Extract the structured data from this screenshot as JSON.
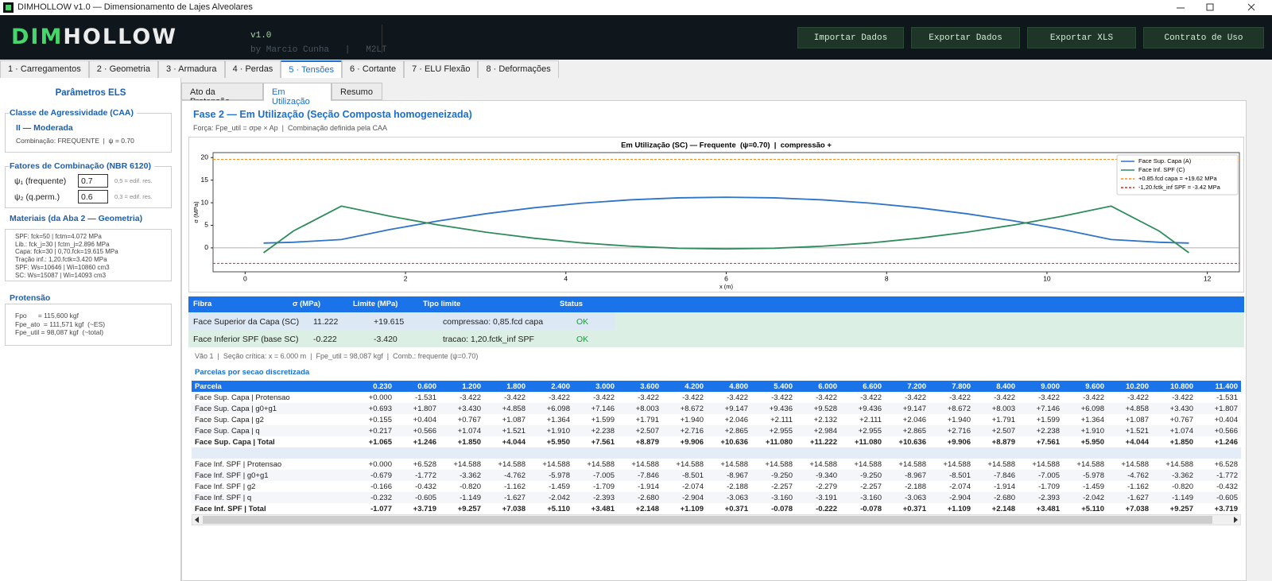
{
  "window": {
    "title": "DIMHOLLOW v1.0 — Dimensionamento de Lajes Alveolares"
  },
  "header": {
    "logo_a": "DIM",
    "logo_b": "HOLLOW",
    "version": "v1.0",
    "author": "by Marcio Cunha   |   M2LT",
    "buttons": [
      "Importar Dados",
      "Exportar Dados",
      "Exportar XLS",
      "Contrato de Uso"
    ]
  },
  "tabs": {
    "items": [
      "1 · Carregamentos",
      "2 · Geometria",
      "3 · Armadura",
      "4 · Perdas",
      "5 · Tensões",
      "6 · Cortante",
      "7 · ELU Flexão",
      "8 · Deformações"
    ],
    "active": 4
  },
  "sidebar": {
    "title": "Parâmetros ELS",
    "caa": {
      "title": "Classe de Agressividade (CAA)",
      "class": "II — Moderada",
      "combination": "Combinação: FREQUENTE  |  ψ = 0.70"
    },
    "factors": {
      "title": "Fatores de Combinação (NBR 6120)",
      "rows": [
        {
          "label": "ψ₁ (frequente)",
          "value": "0.7",
          "hint": "0,5 = edif. res."
        },
        {
          "label": "ψ₂ (q.perm.)",
          "value": "0.6",
          "hint": "0,3 = edif. res."
        }
      ]
    },
    "materials": {
      "title": "Materiais (da Aba 2 — Geometria)",
      "lines": [
        "SPF: fck=50 | fctm=4.072 MPa",
        "Lib.: fck_j=30 | fctm_j=2.896 MPa",
        "Capa: fck=30 | 0,70.fck=19.615 MPa",
        "Tração inf.: 1,20.fctk=3.420 MPa",
        "SPF: Ws=10646 | Wi=10860 cm3",
        "SC: Ws=15087 | Wi=14093 cm3"
      ]
    },
    "prestress": {
      "title": "Protensão",
      "lines": [
        "Fpo      = 115,600 kgf",
        "Fpe_ato  = 111,571 kgf  (~ES)",
        "Fpe_util = 98,087 kgf  (~total)"
      ]
    }
  },
  "subtabs": {
    "items": [
      "Ato da Protensão",
      "Em Utilização",
      "Resumo"
    ],
    "active": 1
  },
  "section": {
    "title": "Fase 2 — Em Utilização (Seção Composta homogeneizada)",
    "subtitle": "Força: Fpe_util = σpe × Ap  |  Combinação definida pela CAA"
  },
  "chart_data": {
    "type": "line",
    "title": "Em Utilização (SC) — Frequente  (ψ=0.70)  |  compressão +",
    "x_label": "x (m)",
    "y_label": "σ (MPa)",
    "x": [
      0.23,
      0.6,
      1.2,
      1.8,
      2.4,
      3.0,
      3.6,
      4.2,
      4.8,
      5.4,
      6.0,
      6.6,
      7.2,
      7.8,
      8.4,
      9.0,
      9.6,
      10.2,
      10.8,
      11.4,
      11.77
    ],
    "series": [
      {
        "name": "Face Sup. Capa (A)",
        "color": "#2f74c8",
        "values": [
          1.065,
          1.246,
          1.85,
          4.044,
          5.95,
          7.561,
          8.879,
          9.906,
          10.636,
          11.08,
          11.222,
          11.08,
          10.636,
          9.906,
          8.879,
          7.561,
          5.95,
          4.044,
          1.85,
          1.246,
          1.065
        ]
      },
      {
        "name": "Face Inf. SPF (C)",
        "color": "#2e8b5c",
        "values": [
          -1.077,
          3.719,
          9.257,
          7.038,
          5.11,
          3.481,
          2.148,
          1.109,
          0.371,
          -0.078,
          -0.222,
          -0.078,
          0.371,
          1.109,
          2.148,
          3.481,
          5.11,
          7.038,
          9.257,
          3.719,
          -1.077
        ]
      }
    ],
    "reference_lines": [
      {
        "name": "+0.85.fcd capa = +19.62 MPa",
        "color": "#ff8c1a",
        "value": 19.615
      },
      {
        "name": "-1,20.fctk_inf SPF = -3.42 MPa",
        "color": "#d62728",
        "value": -3.42
      }
    ],
    "xlim": [
      -0.4,
      12.4
    ],
    "xticks": [
      0,
      2,
      4,
      6,
      8,
      10,
      12
    ],
    "ylim": [
      -5.3,
      21.1
    ],
    "yticks": [
      0,
      5,
      10,
      15,
      20
    ],
    "zero_line": true,
    "legend": "upper right"
  },
  "status_table": {
    "columns": [
      "Fibra",
      "σ (MPa)",
      "Limite (MPa)",
      "Tipo limite",
      "Status"
    ],
    "rows": [
      [
        "Face Superior da Capa (SC)",
        "11.222",
        "+19.615",
        "compressao: 0,85.fcd capa",
        "OK"
      ],
      [
        "Face Inferior SPF (base SC)",
        "-0.222",
        "-3.420",
        "tracao: 1,20.fctk_inf SPF",
        "OK"
      ]
    ]
  },
  "info_line": "Vão 1  |  Seção crítica: x = 6.000 m  |  Fpe_util = 98,087 kgf  |  Comb.: frequente (ψ=0.70)",
  "parcelas": {
    "title": "Parcelas por secao discretizada",
    "columns": [
      "Parcela",
      "0.230",
      "0.600",
      "1.200",
      "1.800",
      "2.400",
      "3.000",
      "3.600",
      "4.200",
      "4.800",
      "5.400",
      "6.000",
      "6.600",
      "7.200",
      "7.800",
      "8.400",
      "9.000",
      "9.600",
      "10.200",
      "10.800",
      "11.400"
    ],
    "groups": [
      [
        {
          "label": "Face Sup. Capa | Protensao",
          "values": [
            "+0.000",
            "-1.531",
            "-3.422",
            "-3.422",
            "-3.422",
            "-3.422",
            "-3.422",
            "-3.422",
            "-3.422",
            "-3.422",
            "-3.422",
            "-3.422",
            "-3.422",
            "-3.422",
            "-3.422",
            "-3.422",
            "-3.422",
            "-3.422",
            "-3.422",
            "-1.531"
          ]
        },
        {
          "label": "Face Sup. Capa | g0+g1",
          "values": [
            "+0.693",
            "+1.807",
            "+3.430",
            "+4.858",
            "+6.098",
            "+7.146",
            "+8.003",
            "+8.672",
            "+9.147",
            "+9.436",
            "+9.528",
            "+9.436",
            "+9.147",
            "+8.672",
            "+8.003",
            "+7.146",
            "+6.098",
            "+4.858",
            "+3.430",
            "+1.807"
          ]
        },
        {
          "label": "Face Sup. Capa | g2",
          "values": [
            "+0.155",
            "+0.404",
            "+0.767",
            "+1.087",
            "+1.364",
            "+1.599",
            "+1.791",
            "+1.940",
            "+2.046",
            "+2.111",
            "+2.132",
            "+2.111",
            "+2.046",
            "+1.940",
            "+1.791",
            "+1.599",
            "+1.364",
            "+1.087",
            "+0.767",
            "+0.404"
          ]
        },
        {
          "label": "Face Sup. Capa | q",
          "values": [
            "+0.217",
            "+0.566",
            "+1.074",
            "+1.521",
            "+1.910",
            "+2.238",
            "+2.507",
            "+2.716",
            "+2.865",
            "+2.955",
            "+2.984",
            "+2.955",
            "+2.865",
            "+2.716",
            "+2.507",
            "+2.238",
            "+1.910",
            "+1.521",
            "+1.074",
            "+0.566"
          ]
        },
        {
          "label": "Face Sup. Capa | Total",
          "bold": true,
          "values": [
            "+1.065",
            "+1.246",
            "+1.850",
            "+4.044",
            "+5.950",
            "+7.561",
            "+8.879",
            "+9.906",
            "+10.636",
            "+11.080",
            "+11.222",
            "+11.080",
            "+10.636",
            "+9.906",
            "+8.879",
            "+7.561",
            "+5.950",
            "+4.044",
            "+1.850",
            "+1.246"
          ]
        }
      ],
      [
        {
          "label": "Face Inf. SPF | Protensao",
          "values": [
            "+0.000",
            "+6.528",
            "+14.588",
            "+14.588",
            "+14.588",
            "+14.588",
            "+14.588",
            "+14.588",
            "+14.588",
            "+14.588",
            "+14.588",
            "+14.588",
            "+14.588",
            "+14.588",
            "+14.588",
            "+14.588",
            "+14.588",
            "+14.588",
            "+14.588",
            "+6.528"
          ]
        },
        {
          "label": "Face Inf. SPF | g0+g1",
          "values": [
            "-0.679",
            "-1.772",
            "-3.362",
            "-4.762",
            "-5.978",
            "-7.005",
            "-7.846",
            "-8.501",
            "-8.967",
            "-9.250",
            "-9.340",
            "-9.250",
            "-8.967",
            "-8.501",
            "-7.846",
            "-7.005",
            "-5.978",
            "-4.762",
            "-3.362",
            "-1.772"
          ]
        },
        {
          "label": "Face Inf. SPF | g2",
          "values": [
            "-0.166",
            "-0.432",
            "-0.820",
            "-1.162",
            "-1.459",
            "-1.709",
            "-1.914",
            "-2.074",
            "-2.188",
            "-2.257",
            "-2.279",
            "-2.257",
            "-2.188",
            "-2.074",
            "-1.914",
            "-1.709",
            "-1.459",
            "-1.162",
            "-0.820",
            "-0.432"
          ]
        },
        {
          "label": "Face Inf. SPF | q",
          "values": [
            "-0.232",
            "-0.605",
            "-1.149",
            "-1.627",
            "-2.042",
            "-2.393",
            "-2.680",
            "-2.904",
            "-3.063",
            "-3.160",
            "-3.191",
            "-3.160",
            "-3.063",
            "-2.904",
            "-2.680",
            "-2.393",
            "-2.042",
            "-1.627",
            "-1.149",
            "-0.605"
          ]
        },
        {
          "label": "Face Inf. SPF | Total",
          "bold": true,
          "values": [
            "-1.077",
            "+3.719",
            "+9.257",
            "+7.038",
            "+5.110",
            "+3.481",
            "+2.148",
            "+1.109",
            "+0.371",
            "-0.078",
            "-0.222",
            "-0.078",
            "+0.371",
            "+1.109",
            "+2.148",
            "+3.481",
            "+5.110",
            "+7.038",
            "+9.257",
            "+3.719"
          ]
        }
      ]
    ]
  }
}
